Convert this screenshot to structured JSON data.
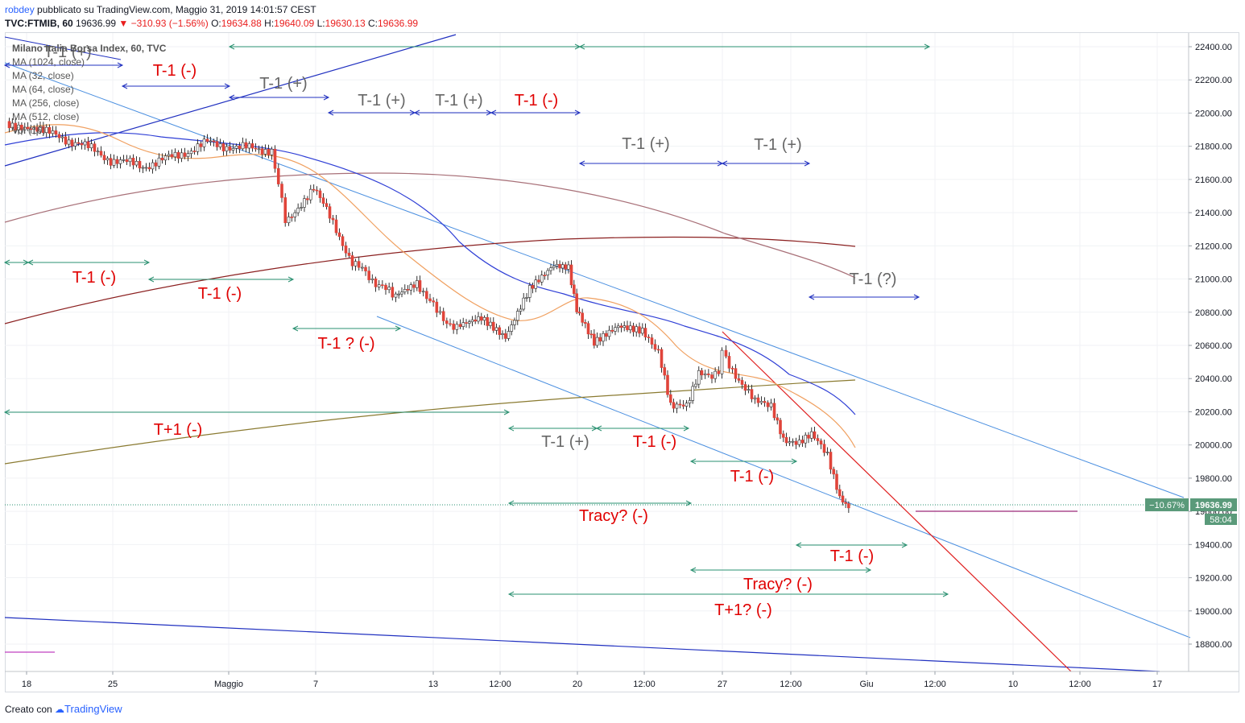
{
  "header": {
    "author": "robdey",
    "published": "pubblicato su TradingView.com, Maggio 31, 2019 14:01:57 CEST",
    "symbol": "TVC:FTMIB, 60",
    "last": "19636.99",
    "change": "−310.93 (−1.56%)",
    "open_label": "O:",
    "open": "19634.88",
    "high_label": "H:",
    "high": "19640.09",
    "low_label": "L:",
    "low": "19630.13",
    "close_label": "C:",
    "close": "19636.99"
  },
  "legend": {
    "title": "Milano Italia Borsa Index, 60, TVC",
    "items": [
      "MA (1024, close)",
      "MA (32, close)",
      "MA (64, close)",
      "MA (256, close)",
      "MA (512, close)",
      "Vol (16)"
    ]
  },
  "price_badges": {
    "percent": "−10.67%",
    "price": "19636.99",
    "countdown": "58:04"
  },
  "footer": {
    "created_with": "Creato con",
    "brand": "TradingView"
  },
  "chart_data": {
    "type": "candlestick",
    "title": "Milano Italia Borsa Index, 60, TVC",
    "y_axis_ticks": [
      22400,
      22200,
      22000,
      21800,
      21600,
      21400,
      21200,
      21000,
      20800,
      20600,
      20400,
      20200,
      20000,
      19800,
      19600,
      19400,
      19200,
      19000,
      18800
    ],
    "ylim": [
      18640,
      22480
    ],
    "x_axis_ticks": [
      "18",
      "25",
      "Maggio",
      "7",
      "13",
      "12:00",
      "20",
      "12:00",
      "27",
      "12:00",
      "Giu",
      "12:00",
      "10",
      "12:00",
      "17"
    ],
    "last_price": 19636.99,
    "annotations": [
      {
        "text": "T-1 (+)",
        "color": "#666666"
      },
      {
        "text": "T-1 (-)",
        "color": "#e00000"
      },
      {
        "text": "T-1 (+)",
        "color": "#666666"
      },
      {
        "text": "T-1 (+)",
        "color": "#666666"
      },
      {
        "text": "T-1 (+)",
        "color": "#666666"
      },
      {
        "text": "T-1 (-)",
        "color": "#e00000"
      },
      {
        "text": "T-1 (+)",
        "color": "#666666"
      },
      {
        "text": "T-1 (+)",
        "color": "#666666"
      },
      {
        "text": "T-1 (-)",
        "color": "#e00000"
      },
      {
        "text": "T-1 (-)",
        "color": "#e00000"
      },
      {
        "text": "T-1 ? (-)",
        "color": "#e00000"
      },
      {
        "text": "T-1 (?)",
        "color": "#666666"
      },
      {
        "text": "T+1 (-)",
        "color": "#e00000"
      },
      {
        "text": "T-1 (+)",
        "color": "#666666"
      },
      {
        "text": "T-1 (-)",
        "color": "#e00000"
      },
      {
        "text": "T-1 (-)",
        "color": "#e00000"
      },
      {
        "text": "Tracy? (-)",
        "color": "#e00000"
      },
      {
        "text": "T-1 (-)",
        "color": "#e00000"
      },
      {
        "text": "Tracy? (-)",
        "color": "#e00000"
      },
      {
        "text": "T+1? (-)",
        "color": "#e00000"
      }
    ],
    "colors": {
      "up_candle": "#ffffff",
      "down_candle": "#e0443a",
      "ma_orange": "#f0a060",
      "ma_blue": "#2f3fd6",
      "ma_maroon": "#8b2020",
      "ma_rose": "#a87078",
      "ma_olive": "#8a7a30",
      "trend_light_blue": "#4a8fe0",
      "trend_red": "#e02020",
      "cycle_green": "#2a9070",
      "cycle_blue": "#2030c0"
    }
  }
}
